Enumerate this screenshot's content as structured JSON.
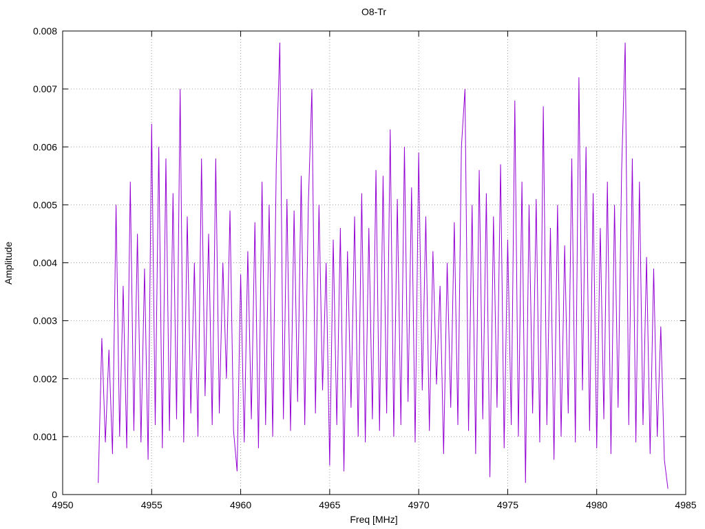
{
  "chart_data": {
    "type": "line",
    "title": "O8-Tr",
    "x_label": "Freq [MHz]",
    "y_label": "Amplitude",
    "xlim": [
      4950,
      4985
    ],
    "xticks": [
      4950,
      4955,
      4960,
      4965,
      4970,
      4975,
      4980,
      4985
    ],
    "ylim": [
      0,
      0.008
    ],
    "yticks": [
      0,
      0.001,
      0.002,
      0.003,
      0.004,
      0.005,
      0.006,
      0.007,
      0.008
    ],
    "grid": true,
    "series": [
      {
        "color": "#9400d3",
        "x": [
          4952,
          4952.2,
          4952.4,
          4952.6,
          4952.8,
          4953,
          4953.2,
          4953.4,
          4953.6,
          4953.8,
          4954,
          4954.2,
          4954.4,
          4954.6,
          4954.8,
          4955,
          4955.2,
          4955.4,
          4955.6,
          4955.8,
          4956,
          4956.2,
          4956.4,
          4956.6,
          4956.8,
          4957,
          4957.2,
          4957.4,
          4957.6,
          4957.8,
          4958,
          4958.2,
          4958.4,
          4958.6,
          4958.8,
          4959,
          4959.2,
          4959.4,
          4959.6,
          4959.8,
          4960,
          4960.2,
          4960.4,
          4960.6,
          4960.8,
          4961,
          4961.2,
          4961.4,
          4961.6,
          4961.8,
          4962,
          4962.2,
          4962.4,
          4962.6,
          4962.8,
          4963,
          4963.2,
          4963.4,
          4963.6,
          4963.8,
          4964,
          4964.2,
          4964.4,
          4964.6,
          4964.8,
          4965,
          4965.2,
          4965.4,
          4965.6,
          4965.8,
          4966,
          4966.2,
          4966.4,
          4966.6,
          4966.8,
          4967,
          4967.2,
          4967.4,
          4967.6,
          4967.8,
          4968,
          4968.2,
          4968.4,
          4968.6,
          4968.8,
          4969,
          4969.2,
          4969.4,
          4969.6,
          4969.8,
          4970,
          4970.2,
          4970.4,
          4970.6,
          4970.8,
          4971,
          4971.2,
          4971.4,
          4971.6,
          4971.8,
          4972,
          4972.2,
          4972.4,
          4972.6,
          4972.8,
          4973,
          4973.2,
          4973.4,
          4973.6,
          4973.8,
          4974,
          4974.2,
          4974.4,
          4974.6,
          4974.8,
          4975,
          4975.2,
          4975.4,
          4975.6,
          4975.8,
          4976,
          4976.2,
          4976.4,
          4976.6,
          4976.8,
          4977,
          4977.2,
          4977.4,
          4977.6,
          4977.8,
          4978,
          4978.2,
          4978.4,
          4978.6,
          4978.8,
          4979,
          4979.2,
          4979.4,
          4979.6,
          4979.8,
          4980,
          4980.2,
          4980.4,
          4980.6,
          4980.8,
          4981,
          4981.2,
          4981.4,
          4981.6,
          4981.8,
          4982,
          4982.2,
          4982.4,
          4982.6,
          4982.8,
          4983,
          4983.2,
          4983.4,
          4983.6,
          4983.8,
          4984
        ],
        "values": [
          0.0002,
          0.0027,
          0.0009,
          0.0025,
          0.0007,
          0.005,
          0.001,
          0.0036,
          0.0008,
          0.0054,
          0.0011,
          0.0045,
          0.0009,
          0.0039,
          0.0006,
          0.0064,
          0.0012,
          0.006,
          0.0008,
          0.0058,
          0.0011,
          0.0052,
          0.0013,
          0.007,
          0.0009,
          0.0048,
          0.0014,
          0.004,
          0.001,
          0.0058,
          0.0017,
          0.0045,
          0.0012,
          0.0058,
          0.0014,
          0.004,
          0.002,
          0.0049,
          0.0011,
          0.0004,
          0.0038,
          0.0009,
          0.0042,
          0.0013,
          0.0047,
          0.0008,
          0.0054,
          0.0012,
          0.005,
          0.001,
          0.0057,
          0.0078,
          0.0013,
          0.0051,
          0.0011,
          0.0049,
          0.0016,
          0.0055,
          0.0012,
          0.005,
          0.007,
          0.0014,
          0.005,
          0.0018,
          0.004,
          0.0005,
          0.0044,
          0.0012,
          0.0046,
          0.0004,
          0.0042,
          0.0015,
          0.0048,
          0.001,
          0.0052,
          0.0009,
          0.0046,
          0.0013,
          0.0056,
          0.0011,
          0.0055,
          0.0014,
          0.0063,
          0.001,
          0.0051,
          0.0012,
          0.006,
          0.0016,
          0.0053,
          0.0009,
          0.0059,
          0.0018,
          0.0048,
          0.0011,
          0.0042,
          0.0019,
          0.0036,
          0.0007,
          0.004,
          0.0015,
          0.0047,
          0.0012,
          0.006,
          0.007,
          0.0011,
          0.005,
          0.0007,
          0.0056,
          0.0013,
          0.0052,
          0.0003,
          0.0048,
          0.0015,
          0.0057,
          0.0008,
          0.0044,
          0.0012,
          0.0068,
          0.001,
          0.0054,
          0.0002,
          0.005,
          0.0014,
          0.0051,
          0.0009,
          0.0067,
          0.0012,
          0.0046,
          0.0006,
          0.005,
          0.001,
          0.0043,
          0.0014,
          0.0058,
          0.0009,
          0.0072,
          0.0018,
          0.006,
          0.0011,
          0.0052,
          0.0008,
          0.0046,
          0.0013,
          0.0054,
          0.0007,
          0.005,
          0.0015,
          0.0056,
          0.0078,
          0.0012,
          0.0058,
          0.0009,
          0.0054,
          0.0012,
          0.0041,
          0.0007,
          0.0039,
          0.001,
          0.0029,
          0.0006,
          0.0001
        ]
      }
    ]
  }
}
